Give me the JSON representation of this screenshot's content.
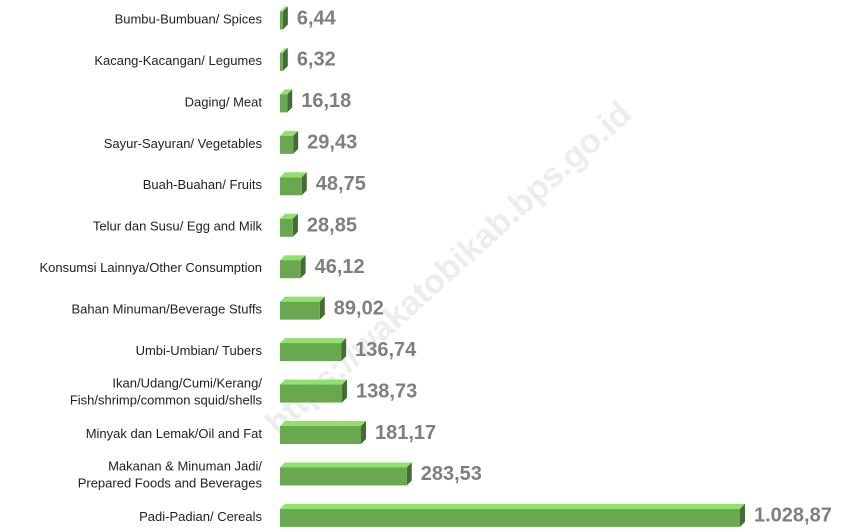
{
  "chart_data": {
    "type": "bar",
    "orientation": "horizontal",
    "watermark": "https://wakatobikab.bps.go.id",
    "color": "#6aa84f",
    "categories": [
      "Bumbu-Bumbuan/ Spices",
      "Kacang-Kacangan/ Legumes",
      "Daging/ Meat",
      "Sayur-Sayuran/ Vegetables",
      "Buah-Buahan/ Fruits",
      "Telur dan Susu/ Egg and Milk",
      "Konsumsi Lainnya/Other Consumption",
      "Bahan Minuman/Beverage Stuffs",
      "Umbi-Umbian/ Tubers",
      "Ikan/Udang/Cumi/Kerang/\nFish/shrimp/common squid/shells",
      "Minyak dan Lemak/Oil and Fat",
      "Makanan & Minuman Jadi/\nPrepared Foods and Beverages",
      "Padi-Padian/ Cereals"
    ],
    "values": [
      6.44,
      6.32,
      16.18,
      29.43,
      48.75,
      28.85,
      46.12,
      89.02,
      136.74,
      138.73,
      181.17,
      283.53,
      1028.87
    ],
    "value_labels": [
      "6,44",
      "6,32",
      "16,18",
      "29,43",
      "48,75",
      "28,85",
      "46,12",
      "89,02",
      "136,74",
      "138,73",
      "181,17",
      "283,53",
      "1.028,87"
    ]
  }
}
